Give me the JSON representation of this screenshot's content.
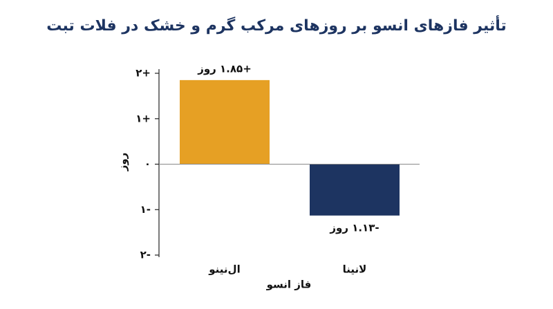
{
  "chart_data": {
    "type": "bar",
    "title": "تأثیر فازهای انسو بر روزهای مرکب گرم و خشک در فلات تبت",
    "categories": [
      "ال‌نینو",
      "لانینا"
    ],
    "values": [
      1.85,
      -1.13
    ],
    "value_labels": [
      "+۱.۸۵ روز",
      "-۱.۱۳ روز"
    ],
    "colors": [
      "#e6a024",
      "#1d3461"
    ],
    "ylim": [
      -2,
      2
    ],
    "yticks": [
      {
        "value": -2,
        "label": "۲-"
      },
      {
        "value": -1,
        "label": "۱-"
      },
      {
        "value": 0,
        "label": "۰"
      },
      {
        "value": 1,
        "label": "۱+"
      },
      {
        "value": 2,
        "label": "۲+"
      }
    ],
    "ylabel": "روز",
    "xlabel": "فاز انسو"
  }
}
